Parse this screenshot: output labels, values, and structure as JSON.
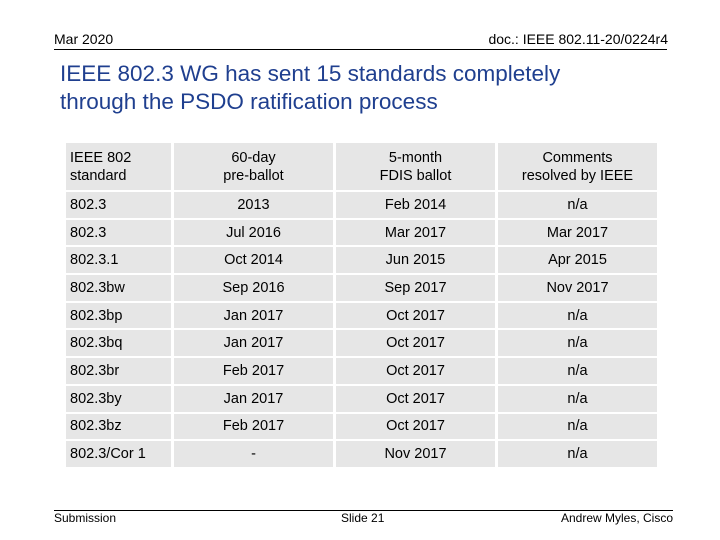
{
  "header": {
    "date": "Mar 2020",
    "doc_ref": "doc.: IEEE 802.11-20/0224r4"
  },
  "title": {
    "line1": "IEEE 802.3 WG has sent 15 standards completely",
    "line2": "through the PSDO ratification process"
  },
  "table": {
    "headers": [
      [
        "IEEE 802",
        "standard"
      ],
      [
        "60-day",
        "pre-ballot"
      ],
      [
        "5-month",
        "FDIS ballot"
      ],
      [
        "Comments",
        "resolved by IEEE"
      ]
    ],
    "rows": [
      [
        "802.3",
        "2013",
        "Feb 2014",
        "n/a"
      ],
      [
        "802.3",
        "Jul 2016",
        "Mar 2017",
        "Mar 2017"
      ],
      [
        "802.3.1",
        "Oct 2014",
        "Jun 2015",
        "Apr 2015"
      ],
      [
        "802.3bw",
        "Sep 2016",
        "Sep 2017",
        "Nov 2017"
      ],
      [
        "802.3bp",
        "Jan 2017",
        "Oct 2017",
        "n/a"
      ],
      [
        "802.3bq",
        "Jan 2017",
        "Oct 2017",
        "n/a"
      ],
      [
        "802.3br",
        "Feb 2017",
        "Oct 2017",
        "n/a"
      ],
      [
        "802.3by",
        "Jan 2017",
        "Oct 2017",
        "n/a"
      ],
      [
        "802.3bz",
        "Feb 2017",
        "Oct 2017",
        "n/a"
      ],
      [
        "802.3/Cor 1",
        "-",
        "Nov 2017",
        "n/a"
      ]
    ]
  },
  "footer": {
    "left": "Submission",
    "center": "Slide 21",
    "right": "Andrew Myles, Cisco"
  }
}
